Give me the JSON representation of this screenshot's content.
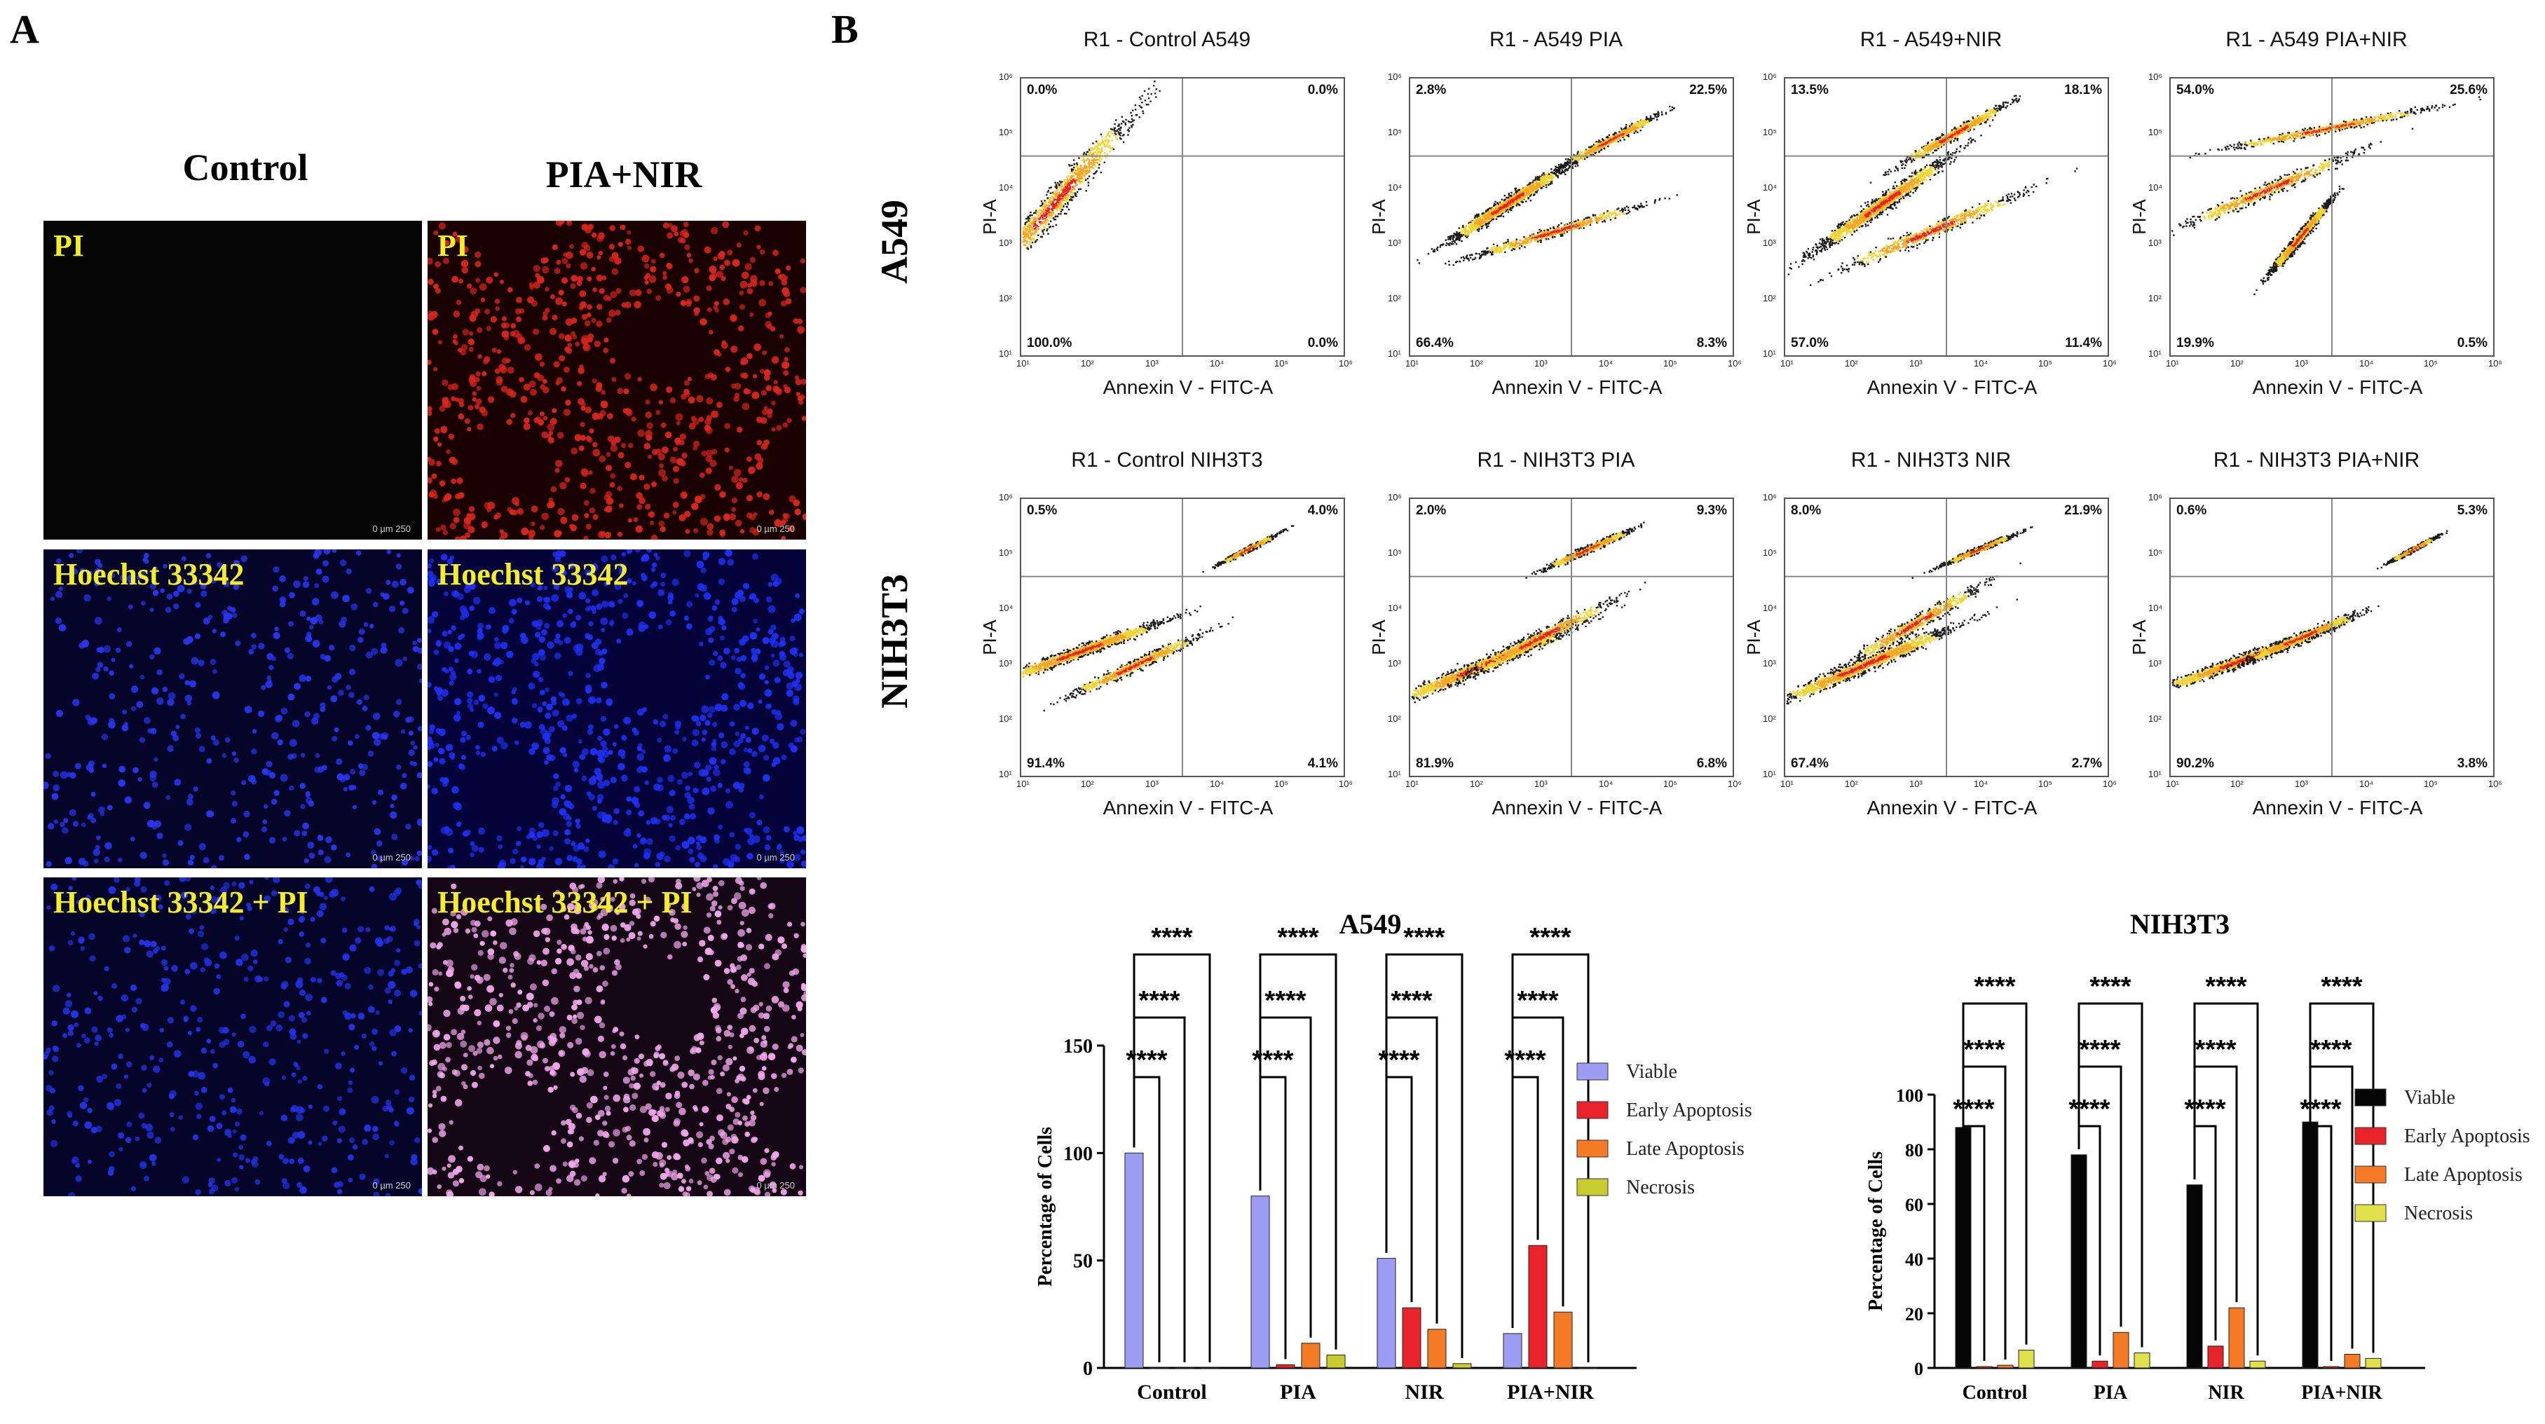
{
  "panel_a": {
    "letter": "A",
    "columns": [
      "Control",
      "PIA+NIR"
    ],
    "stains": [
      "PI",
      "Hoechst 33342",
      "Hoechst 33342 + PI"
    ],
    "scale_bar": "0    µm    250"
  },
  "panel_b": {
    "letter": "B",
    "rows": [
      "A549",
      "NIH3T3"
    ],
    "flow_xlabel": "Annexin V - FITC-A",
    "flow_ylabel": "PI-A",
    "flow_ticks": [
      "10¹",
      "10²",
      "10³",
      "10⁴",
      "10⁵",
      "10⁶"
    ],
    "flow_plots": [
      {
        "title": "R1 - Control A549",
        "ul": "0.0%",
        "ur": "0.0%",
        "ll": "100.0%",
        "lr": "0.0%"
      },
      {
        "title": "R1 - A549 PIA",
        "ul": "2.8%",
        "ur": "22.5%",
        "ll": "66.4%",
        "lr": "8.3%"
      },
      {
        "title": "R1 - A549+NIR",
        "ul": "13.5%",
        "ur": "18.1%",
        "ll": "57.0%",
        "lr": "11.4%"
      },
      {
        "title": "R1 - A549 PIA+NIR",
        "ul": "54.0%",
        "ur": "25.6%",
        "ll": "19.9%",
        "lr": "0.5%"
      },
      {
        "title": "R1 - Control NIH3T3",
        "ul": "0.5%",
        "ur": "4.0%",
        "ll": "91.4%",
        "lr": "4.1%"
      },
      {
        "title": "R1 - NIH3T3 PIA",
        "ul": "2.0%",
        "ur": "9.3%",
        "ll": "81.9%",
        "lr": "6.8%"
      },
      {
        "title": "R1 - NIH3T3 NIR",
        "ul": "8.0%",
        "ur": "21.9%",
        "ll": "67.4%",
        "lr": "2.7%"
      },
      {
        "title": "R1 - NIH3T3 PIA+NIR",
        "ul": "0.6%",
        "ur": "5.3%",
        "ll": "90.2%",
        "lr": "3.8%"
      }
    ]
  },
  "significance": "****",
  "chart_data": [
    {
      "type": "bar",
      "title": "A549",
      "ylabel": "Percentage of Cells",
      "ylim": [
        0,
        150
      ],
      "yticks": [
        "0",
        "50",
        "100",
        "150"
      ],
      "categories": [
        "Control",
        "PIA",
        "NIR",
        "PIA+NIR"
      ],
      "series": [
        {
          "name": "Viable",
          "color": "#9c9cf2",
          "values": [
            100,
            80,
            51,
            16
          ]
        },
        {
          "name": "Early Apoptosis",
          "color": "#e8232a",
          "values": [
            0,
            1.5,
            28,
            57
          ]
        },
        {
          "name": "Late Apoptosis",
          "color": "#f47a25",
          "values": [
            0,
            11.5,
            18,
            26
          ]
        },
        {
          "name": "Necrosis",
          "color": "#c9cc2e",
          "values": [
            0,
            6,
            2,
            0
          ]
        }
      ]
    },
    {
      "type": "bar",
      "title": "NIH3T3",
      "ylabel": "Percentage of Cells",
      "ylim": [
        0,
        100
      ],
      "yticks": [
        "0",
        "20",
        "40",
        "60",
        "80",
        "100"
      ],
      "categories": [
        "Control",
        "PIA",
        "NIR",
        "PIA+NIR"
      ],
      "series": [
        {
          "name": "Viable",
          "color": "#050505",
          "values": [
            88,
            78,
            67,
            90
          ]
        },
        {
          "name": "Early Apoptosis",
          "color": "#e8232a",
          "values": [
            0.5,
            2.5,
            8,
            0.5
          ]
        },
        {
          "name": "Late Apoptosis",
          "color": "#f47a25",
          "values": [
            1,
            13,
            22,
            5
          ]
        },
        {
          "name": "Necrosis",
          "color": "#e0e04a",
          "values": [
            6.5,
            5.5,
            2.5,
            3.5
          ]
        }
      ]
    }
  ]
}
